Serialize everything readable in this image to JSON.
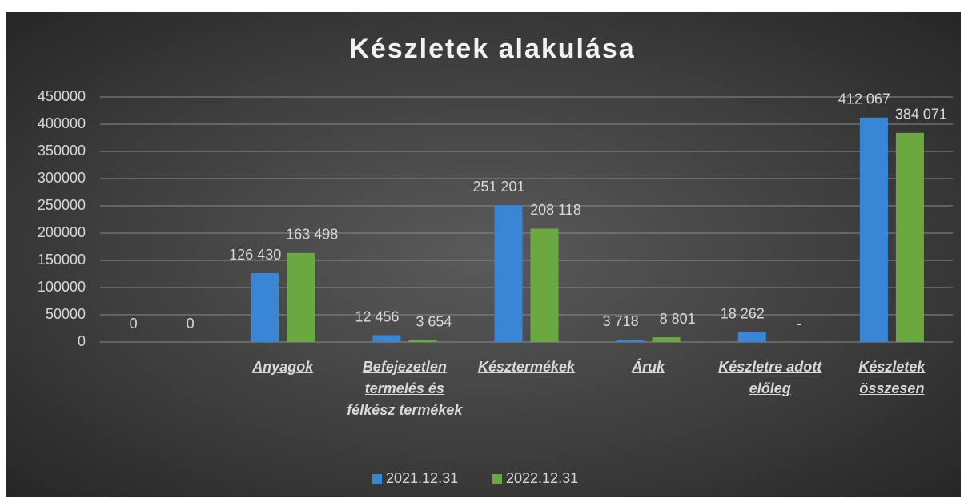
{
  "chart_data": {
    "type": "bar",
    "title": "Készletek alakulása",
    "categories": [
      null,
      "Anyagok",
      "Befejezetlen termelés és félkész termékek",
      "Késztermékek",
      "Áruk",
      "Készletre adott előleg",
      "Készletek összesen"
    ],
    "series": [
      {
        "name": "2021.12.31",
        "color": "#3a86d6",
        "values": [
          0,
          126430,
          12456,
          251201,
          3718,
          18262,
          412067
        ],
        "value_labels": [
          "0",
          "126 430",
          "12 456",
          "251 201",
          "3 718",
          "18 262",
          "412 067"
        ]
      },
      {
        "name": "2022.12.31",
        "color": "#6aa940",
        "values": [
          0,
          163498,
          3654,
          208118,
          8801,
          0,
          384071
        ],
        "value_labels": [
          "0",
          "163 498",
          "3 654",
          "208 118",
          "8 801",
          "-",
          "384 071"
        ]
      }
    ],
    "ylim": [
      0,
      450000
    ],
    "yticks": [
      0,
      50000,
      100000,
      150000,
      200000,
      250000,
      300000,
      350000,
      400000,
      450000
    ],
    "grid": true,
    "legend": "bottom"
  }
}
